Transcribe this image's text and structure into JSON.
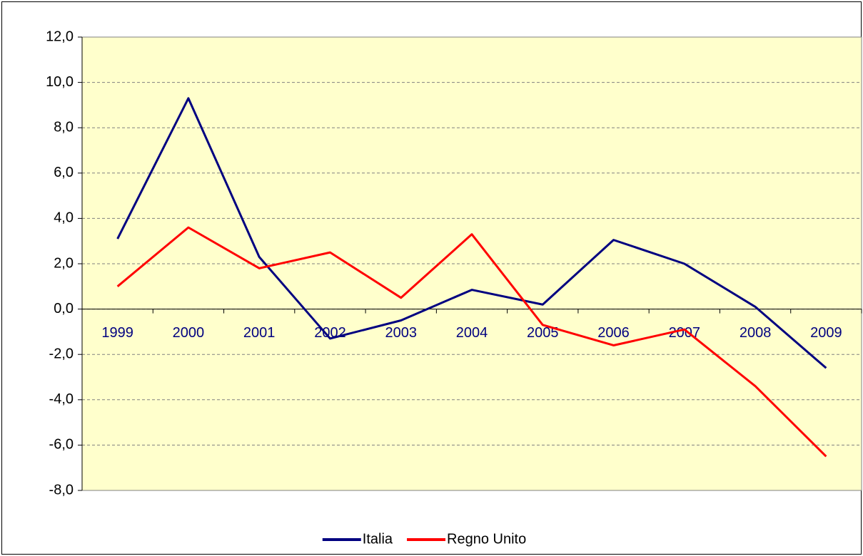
{
  "chart_data": {
    "type": "line",
    "categories": [
      "1999",
      "2000",
      "2001",
      "2002",
      "2003",
      "2004",
      "2005",
      "2006",
      "2007",
      "2008",
      "2009"
    ],
    "series": [
      {
        "name": "Italia",
        "color": "#000080",
        "values": [
          3.1,
          9.3,
          2.3,
          -1.3,
          -0.5,
          0.85,
          0.2,
          3.05,
          2.0,
          0.1,
          -2.6
        ]
      },
      {
        "name": "Regno Unito",
        "color": "#ff0000",
        "values": [
          1.0,
          3.6,
          1.8,
          2.5,
          0.5,
          3.3,
          -0.7,
          -1.6,
          -0.9,
          -3.4,
          -6.5
        ]
      }
    ],
    "ylim": [
      -8,
      12
    ],
    "yticks": [
      {
        "value": -8,
        "label": "-8,0"
      },
      {
        "value": -6,
        "label": "-6,0"
      },
      {
        "value": -4,
        "label": "-4,0"
      },
      {
        "value": -2,
        "label": "-2,0"
      },
      {
        "value": 0,
        "label": "0,0"
      },
      {
        "value": 2,
        "label": "2,0"
      },
      {
        "value": 4,
        "label": "4,0"
      },
      {
        "value": 6,
        "label": "6,0"
      },
      {
        "value": 8,
        "label": "8,0"
      },
      {
        "value": 10,
        "label": "10,0"
      },
      {
        "value": 12,
        "label": "12,0"
      }
    ],
    "grid": true,
    "legend": "bottom",
    "plot_background": "#ffffcc"
  }
}
